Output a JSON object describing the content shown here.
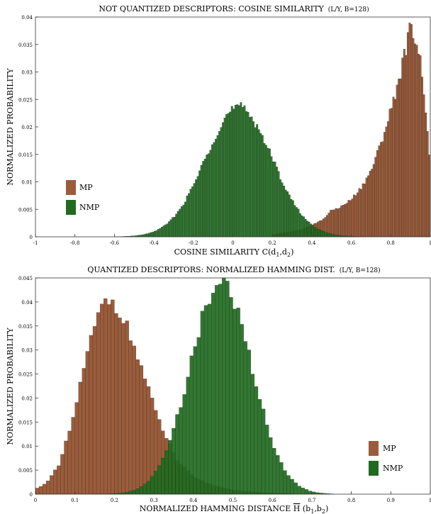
{
  "chart_data": [
    {
      "type": "bar",
      "title": "NOT QUANTIZED DESCRIPTORS: COSINE SIMILARITY",
      "title_suffix": "(L/Y, B=128)",
      "xlabel_main": "COSINE SIMILARITY C(d",
      "xlabel_sub1": "1",
      "xlabel_mid": ",d",
      "xlabel_sub2": "2",
      "xlabel_end": ")",
      "ylabel": "NORMALIZED PROBABILITY",
      "xlim": [
        -1,
        1
      ],
      "ylim": [
        0,
        0.04
      ],
      "xticks": [
        "-1",
        "-0.8",
        "-0.6",
        "-0.4",
        "-0.2",
        "0",
        "0.2",
        "0.4",
        "0.6",
        "0.8",
        "1"
      ],
      "yticks": [
        "0",
        "0.005",
        "0.01",
        "0.015",
        "0.02",
        "0.025",
        "0.03",
        "0.035",
        "0.04"
      ],
      "legend_position": "center-left",
      "series": [
        {
          "name": "MP",
          "color": "#9b5c3b",
          "distribution": "skewed-left",
          "peak_x": 0.9,
          "peak_y": 0.0382,
          "x_min": -0.1,
          "x_max": 1.0,
          "anchors": [
            [
              0.2,
              0.0004
            ],
            [
              0.35,
              0.0013
            ],
            [
              0.45,
              0.003
            ],
            [
              0.5,
              0.0048
            ],
            [
              0.55,
              0.0055
            ],
            [
              0.6,
              0.0068
            ],
            [
              0.65,
              0.009
            ],
            [
              0.7,
              0.012
            ],
            [
              0.75,
              0.017
            ],
            [
              0.8,
              0.023
            ],
            [
              0.85,
              0.03
            ],
            [
              0.88,
              0.035
            ],
            [
              0.9,
              0.0382
            ],
            [
              0.93,
              0.036
            ],
            [
              0.96,
              0.03
            ],
            [
              0.98,
              0.022
            ],
            [
              1.0,
              0.012
            ]
          ]
        },
        {
          "name": "NMP",
          "color": "#1f6b1f",
          "distribution": "normal",
          "mean": 0.03,
          "std": 0.17,
          "peak_y": 0.0235,
          "x_min": -0.6,
          "x_max": 0.65
        }
      ]
    },
    {
      "type": "bar",
      "title": "QUANTIZED DESCRIPTORS: NORMALIZED HAMMING DIST.",
      "title_suffix": "(L/Y, B=128)",
      "xlabel_main": "NORMALIZED HAMMING DISTANCE ",
      "xlabel_hbar": "H",
      "xlabel_mid": " (b",
      "xlabel_sub1": "1",
      "xlabel_sep": ",b",
      "xlabel_sub2": "2",
      "xlabel_end": ")",
      "ylabel": "NORMALIZED PROBABILITY",
      "xlim": [
        0,
        1
      ],
      "ylim": [
        0,
        0.045
      ],
      "xticks": [
        "0",
        "0.1",
        "0.2",
        "0.3",
        "0.4",
        "0.5",
        "0.6",
        "0.7",
        "0.8",
        "0.9",
        "1"
      ],
      "yticks": [
        "0",
        "0.005",
        "0.01",
        "0.015",
        "0.02",
        "0.025",
        "0.03",
        "0.035",
        "0.04",
        "0.045"
      ],
      "legend_position": "bottom-right",
      "series": [
        {
          "name": "MP",
          "color": "#9b5c3b",
          "distribution": "skewed-right",
          "peak_x": 0.18,
          "peak_y": 0.041,
          "x_min": 0.0,
          "x_max": 0.65,
          "anchors": [
            [
              0.0,
              0.001
            ],
            [
              0.03,
              0.0025
            ],
            [
              0.06,
              0.006
            ],
            [
              0.09,
              0.014
            ],
            [
              0.12,
              0.025
            ],
            [
              0.15,
              0.035
            ],
            [
              0.18,
              0.041
            ],
            [
              0.21,
              0.039
            ],
            [
              0.24,
              0.033
            ],
            [
              0.27,
              0.026
            ],
            [
              0.3,
              0.018
            ],
            [
              0.33,
              0.012
            ],
            [
              0.36,
              0.007
            ],
            [
              0.4,
              0.0035
            ],
            [
              0.45,
              0.0018
            ],
            [
              0.5,
              0.0009
            ],
            [
              0.55,
              0.0005
            ],
            [
              0.6,
              0.0002
            ],
            [
              0.65,
              0.0001
            ]
          ]
        },
        {
          "name": "NMP",
          "color": "#1f6b1f",
          "distribution": "normal",
          "mean": 0.47,
          "std": 0.078,
          "peak_y": 0.044,
          "x_min": 0.15,
          "x_max": 0.75
        }
      ]
    }
  ]
}
